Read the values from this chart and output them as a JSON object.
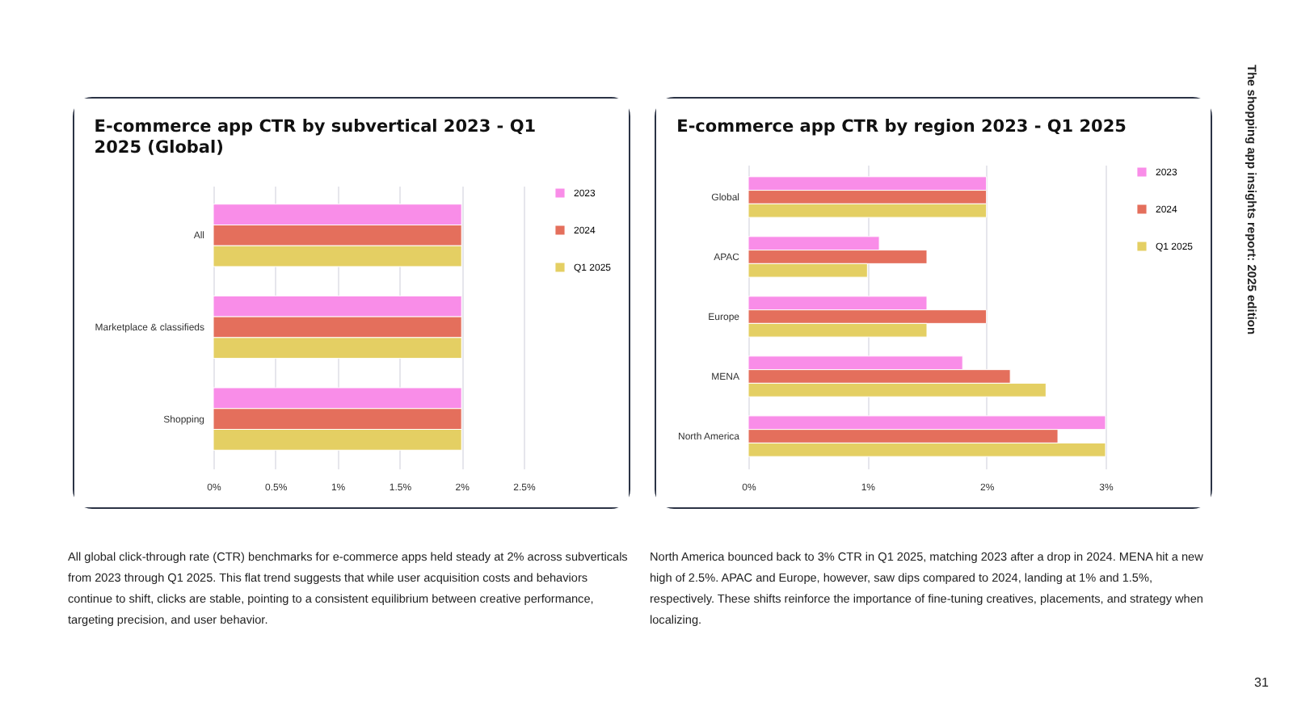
{
  "chart_data": [
    {
      "type": "bar",
      "orientation": "horizontal",
      "title": "E-commerce app CTR by subvertical 2023 - Q1 2025 (Global)",
      "categories": [
        "All",
        "Marketplace & classifieds",
        "Shopping"
      ],
      "series": [
        {
          "name": "2023",
          "color": "#f98de8",
          "values": [
            2,
            2,
            2
          ]
        },
        {
          "name": "2024",
          "color": "#e46f5c",
          "values": [
            2,
            2,
            2
          ]
        },
        {
          "name": "Q1 2025",
          "color": "#e4cf63",
          "values": [
            2,
            2,
            2
          ]
        }
      ],
      "xlim": [
        0,
        2.5
      ],
      "xticks": [
        {
          "value": 0,
          "label": "0%"
        },
        {
          "value": 0.5,
          "label": "0.5%"
        },
        {
          "value": 1,
          "label": "1%"
        },
        {
          "value": 1.5,
          "label": "1.5%"
        },
        {
          "value": 2,
          "label": "2%"
        },
        {
          "value": 2.5,
          "label": "2.5%"
        }
      ],
      "grid": "x",
      "legend": "top right",
      "annotations": [
        "All global click-through rate (CTR) benchmarks for e-commerce apps held steady at 2% across subverticals from 2023 through Q1 2025. This flat trend suggests that while user acquisition costs and behaviors continue to shift, clicks are stable, pointing to a consistent equilibrium between creative performance, targeting precision, and user behavior."
      ]
    },
    {
      "type": "bar",
      "orientation": "horizontal",
      "title": "E-commerce app CTR by region 2023 - Q1 2025",
      "categories": [
        "Global",
        "APAC",
        "Europe",
        "MENA",
        "North America"
      ],
      "series": [
        {
          "name": "2023",
          "color": "#f98de8",
          "values": [
            2,
            1.1,
            1.5,
            1.8,
            3
          ]
        },
        {
          "name": "2024",
          "color": "#e46f5c",
          "values": [
            2,
            1.5,
            2,
            2.2,
            2.6
          ]
        },
        {
          "name": "Q1 2025",
          "color": "#e4cf63",
          "values": [
            2,
            1,
            1.5,
            2.5,
            3
          ]
        }
      ],
      "xlim": [
        0,
        3
      ],
      "xticks": [
        {
          "value": 0,
          "label": "0%"
        },
        {
          "value": 1,
          "label": "1%"
        },
        {
          "value": 2,
          "label": "2%"
        },
        {
          "value": 3,
          "label": "3%"
        }
      ],
      "grid": "x",
      "legend": "top right",
      "annotations": [
        "North America bounced back to 3% CTR in Q1 2025, matching 2023 after a drop in 2024. MENA hit a new high of 2.5%. APAC and Europe, however, saw dips compared to 2024, landing at 1% and 1.5%, respectively. These shifts reinforce the importance of fine-tuning creatives, placements, and strategy when localizing.",
        "The shopping app insights report: 2025 edition",
        "31"
      ]
    }
  ]
}
